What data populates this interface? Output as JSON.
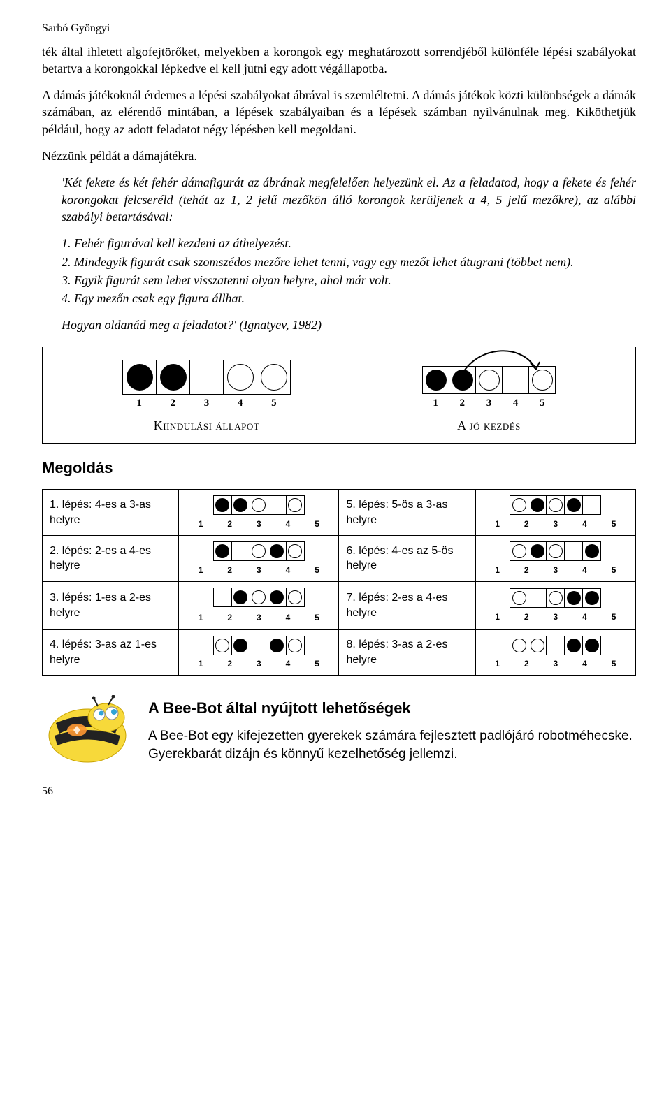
{
  "author": "Sarbó Gyöngyi",
  "para1": "ték által ihletett algofejtörőket, melyekben a korongok egy meghatározott sorrendjéből különféle lépési szabályokat betartva a korongokkal lépkedve el kell jutni egy adott végállapotba.",
  "para2": "A dámás játékoknál érdemes a lépési szabályokat ábrával is szemléltetni. A dámás játékok közti különbségek a dámák számában, az elérendő mintában, a lépések szabályaiban és a lépések számban nyilvánulnak meg. Kiköthetjük például, hogy az adott feladatot négy lépésben kell megoldani.",
  "para3": "Nézzünk példát a dámajátékra.",
  "task1": "'Két fekete és két fehér dámafigurát az ábrának megfelelően helyezünk el. Az a feladatod, hogy a fekete és fehér korongokat felcseréld (tehát az 1, 2 jelű mezőkön álló korongok kerüljenek a 4, 5 jelű mezőkre), az alábbi szabályi betartásával:",
  "rules": {
    "r1": "1. Fehér figurával kell kezdeni az áthelyezést.",
    "r2": "2. Mindegyik figurát csak szomszédos mezőre lehet tenni, vagy egy mezőt lehet átugrani (többet nem).",
    "r3": "3. Egyik figurát sem lehet visszatenni olyan helyre, ahol már volt.",
    "r4": "4. Egy mezőn csak egy figura állhat."
  },
  "closing": "Hogyan oldanád meg a feladatot?' (Ignatyev, 1982)",
  "fig": {
    "left_caption": "Kiindulási állapot",
    "right_caption": "A jó kezdés",
    "initial": [
      "black",
      "black",
      "",
      "white",
      "white"
    ],
    "goodstart": [
      "black",
      "black",
      "white",
      "",
      "white"
    ]
  },
  "solution_title": "Megoldás",
  "steps": {
    "s1": {
      "label": "1. lépés: 4-es a 3-as helyre",
      "cells": [
        "black",
        "black",
        "white",
        "",
        "white"
      ]
    },
    "s2": {
      "label": "2. lépés: 2-es a 4-es helyre",
      "cells": [
        "black",
        "",
        "white",
        "black",
        "white"
      ]
    },
    "s3": {
      "label": "3. lépés: 1-es a 2-es helyre",
      "cells": [
        "",
        "black",
        "white",
        "black",
        "white"
      ]
    },
    "s4": {
      "label": "4. lépés: 3-as az 1-es helyre",
      "cells": [
        "white",
        "black",
        "",
        "black",
        "white"
      ]
    },
    "s5": {
      "label": "5. lépés: 5-ös a 3-as helyre",
      "cells": [
        "white",
        "black",
        "white",
        "black",
        ""
      ]
    },
    "s6": {
      "label": "6. lépés: 4-es az 5-ös helyre",
      "cells": [
        "white",
        "black",
        "white",
        "",
        "black"
      ]
    },
    "s7": {
      "label": "7. lépés: 2-es a 4-es helyre",
      "cells": [
        "white",
        "",
        "white",
        "black",
        "black"
      ]
    },
    "s8": {
      "label": "8. lépés: 3-as a 2-es helyre",
      "cells": [
        "white",
        "white",
        "",
        "black",
        "black"
      ]
    }
  },
  "beebot": {
    "title": "A Bee-Bot által nyújtott lehetőségek",
    "text": "A Bee-Bot egy kifejezetten gyerekek számára fejlesztett padlójáró robotméhecske. Gyerekbarát dizájn és könnyű kezelhetőség jellemzi."
  },
  "pagenum": "56",
  "colors": {
    "bee_yellow": "#f7d93a",
    "bee_orange": "#f5a623",
    "bee_black": "#222"
  }
}
